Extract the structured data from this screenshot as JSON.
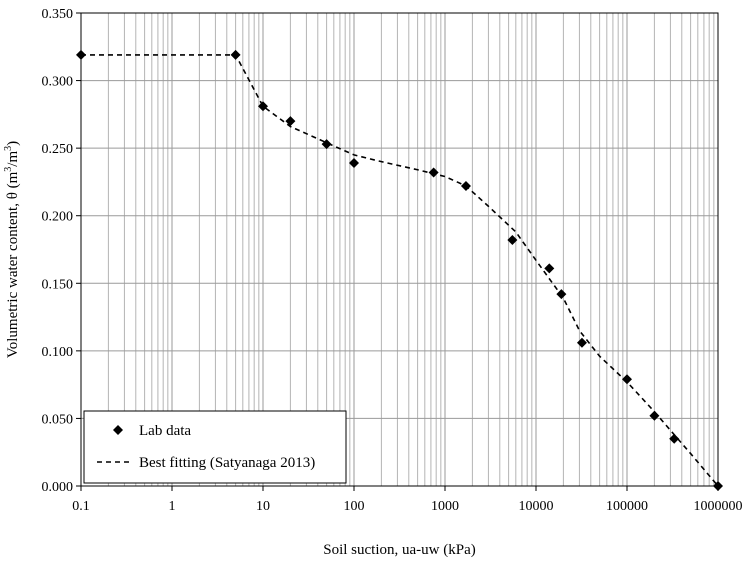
{
  "chart_data": {
    "type": "scatter",
    "title": "",
    "xlabel": "Soil suction, ua-uw (kPa)",
    "ylabel_main": "Volumetric  water content,  θ (m",
    "ylabel_unit_a": "3",
    "ylabel_mid": "/m",
    "ylabel_unit_b": "3",
    "ylabel_end": ")",
    "x_scale": "log",
    "xlim": [
      0.1,
      1000000
    ],
    "ylim": [
      0,
      0.35
    ],
    "grid": true,
    "legend_position": "bottom-left",
    "x_tick_labels": [
      "0.1",
      "1",
      "10",
      "100",
      "1000",
      "10000",
      "100000",
      "1000000"
    ],
    "y_tick_labels": [
      "0.000",
      "0.050",
      "0.100",
      "0.150",
      "0.200",
      "0.250",
      "0.300",
      "0.350"
    ],
    "series": [
      {
        "name": "Lab data",
        "marker": "diamond",
        "color": "#000000",
        "x": [
          0.1,
          5,
          10,
          20,
          50,
          100,
          750,
          1700,
          5500,
          14000,
          19000,
          32000,
          100000,
          200000,
          330000,
          1000000
        ],
        "y": [
          0.319,
          0.319,
          0.281,
          0.27,
          0.253,
          0.239,
          0.232,
          0.222,
          0.182,
          0.161,
          0.142,
          0.106,
          0.079,
          0.052,
          0.035,
          0.0
        ]
      },
      {
        "name": "Best fitting (Satyanaga 2013)",
        "style": "dashed",
        "color": "#000000",
        "x": [
          0.1,
          5,
          10,
          20,
          50,
          100,
          200,
          500,
          1000,
          1700,
          3000,
          6000,
          10000,
          20000,
          30000,
          50000,
          100000,
          200000,
          330000,
          500000,
          1000000
        ],
        "y": [
          0.319,
          0.319,
          0.281,
          0.266,
          0.254,
          0.245,
          0.24,
          0.234,
          0.229,
          0.222,
          0.207,
          0.188,
          0.167,
          0.139,
          0.115,
          0.096,
          0.077,
          0.055,
          0.038,
          0.024,
          0.0
        ]
      }
    ]
  }
}
